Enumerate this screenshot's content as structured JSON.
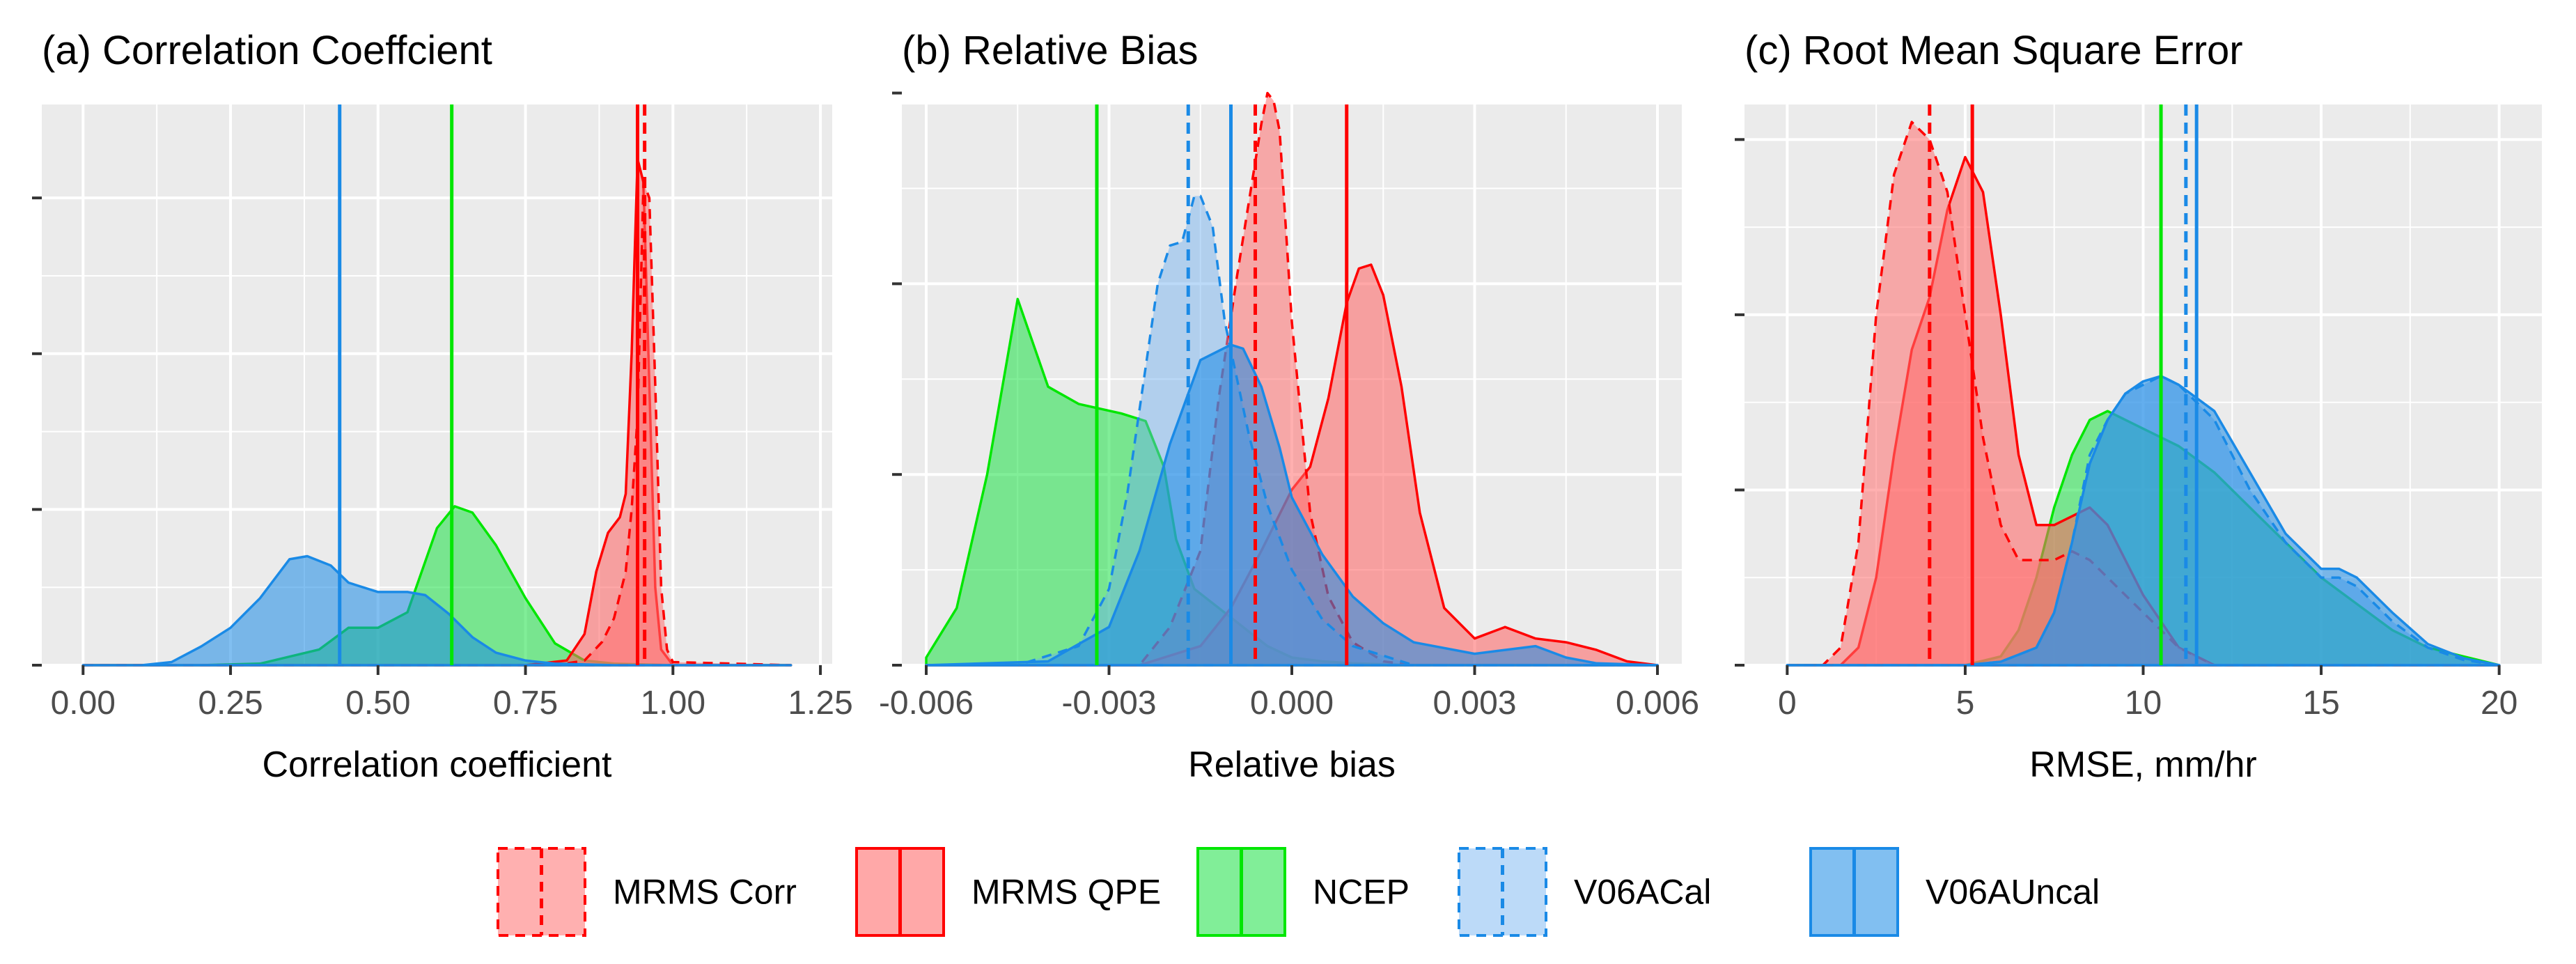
{
  "chart_data": [
    {
      "type": "area",
      "title": "(a) Correlation Coeffcient",
      "xlabel": "Correlation coefficient",
      "ylabel": "",
      "xlim": [
        -0.07,
        1.27
      ],
      "ylim": [
        0,
        36
      ],
      "xticks": [
        0.0,
        0.25,
        0.5,
        0.75,
        1.0,
        1.25
      ],
      "xtick_labels": [
        "0.00",
        "0.25",
        "0.50",
        "0.75",
        "1.00",
        "1.25"
      ],
      "yticks": [
        0,
        10,
        20,
        30
      ],
      "series": [
        {
          "name": "V06AUncal",
          "key": "v06auncal",
          "x": [
            0.0,
            0.1,
            0.15,
            0.2,
            0.25,
            0.3,
            0.35,
            0.38,
            0.42,
            0.45,
            0.5,
            0.55,
            0.58,
            0.62,
            0.66,
            0.7,
            0.75,
            0.8,
            0.9,
            1.0,
            1.2
          ],
          "y": [
            0,
            0,
            0.2,
            1.2,
            2.4,
            4.3,
            6.8,
            7.0,
            6.4,
            5.3,
            4.7,
            4.7,
            4.5,
            3.3,
            1.8,
            0.8,
            0.3,
            0.1,
            0,
            0,
            0
          ],
          "mean": 0.435
        },
        {
          "name": "NCEP",
          "key": "ncep",
          "x": [
            0.0,
            0.2,
            0.3,
            0.4,
            0.45,
            0.5,
            0.55,
            0.6,
            0.63,
            0.66,
            0.7,
            0.75,
            0.8,
            0.85,
            0.9,
            1.0,
            1.2
          ],
          "y": [
            0,
            0,
            0.1,
            1.0,
            2.4,
            2.4,
            3.4,
            8.8,
            10.2,
            9.8,
            7.7,
            4.3,
            1.4,
            0.3,
            0.1,
            0,
            0
          ],
          "mean": 0.625
        },
        {
          "name": "MRMS QPE",
          "key": "qpe",
          "x": [
            0.0,
            0.75,
            0.82,
            0.85,
            0.87,
            0.89,
            0.91,
            0.92,
            0.93,
            0.94,
            0.95,
            0.96,
            0.97,
            0.98,
            1.0,
            1.2
          ],
          "y": [
            0,
            0,
            0.3,
            2.0,
            6.0,
            8.5,
            9.5,
            11.0,
            20.0,
            32.5,
            31.0,
            18.0,
            5.0,
            1.0,
            0,
            0
          ],
          "mean": 0.94
        },
        {
          "name": "MRMS Corr",
          "key": "corr",
          "x": [
            0.0,
            0.8,
            0.85,
            0.88,
            0.9,
            0.92,
            0.93,
            0.94,
            0.95,
            0.96,
            0.97,
            0.98,
            0.99,
            1.0,
            1.2
          ],
          "y": [
            0,
            0,
            0.3,
            1.5,
            3.0,
            6.0,
            10.0,
            16.0,
            31.0,
            30.0,
            18.0,
            5.0,
            1.0,
            0.2,
            0
          ],
          "mean": 0.952
        }
      ]
    },
    {
      "type": "area",
      "title": "(b) Relative Bias",
      "xlabel": "Relative bias",
      "ylabel": "",
      "xlim": [
        -0.0064,
        0.0064
      ],
      "ylim": [
        0,
        1470
      ],
      "xticks": [
        -0.006,
        -0.003,
        0.0,
        0.003,
        0.006
      ],
      "xtick_labels": [
        "-0.006",
        "-0.003",
        "0.000",
        "0.003",
        "0.006"
      ],
      "yticks": [
        0,
        500,
        1000,
        1500
      ],
      "series": [
        {
          "name": "NCEP",
          "key": "ncep",
          "x": [
            -0.006,
            -0.0055,
            -0.005,
            -0.0045,
            -0.004,
            -0.0035,
            -0.0028,
            -0.0024,
            -0.0021,
            -0.0019,
            -0.0016,
            -0.0012,
            -0.0008,
            -0.0004,
            0.0,
            0.0005,
            0.001,
            0.002,
            0.006
          ],
          "y": [
            20,
            150,
            500,
            960,
            730,
            685,
            660,
            640,
            520,
            330,
            200,
            150,
            100,
            50,
            20,
            10,
            5,
            0,
            0
          ],
          "mean": -0.0032
        },
        {
          "name": "MRMS QPE",
          "key": "qpe",
          "x": [
            -0.006,
            -0.0025,
            -0.0015,
            -0.001,
            -0.0005,
            0.0,
            0.0003,
            0.0006,
            0.0009,
            0.0011,
            0.0013,
            0.0015,
            0.0018,
            0.0021,
            0.0025,
            0.003,
            0.0035,
            0.004,
            0.0045,
            0.005,
            0.0055,
            0.006
          ],
          "y": [
            0,
            0,
            50,
            150,
            300,
            460,
            520,
            700,
            950,
            1040,
            1050,
            970,
            730,
            400,
            150,
            70,
            100,
            70,
            60,
            40,
            10,
            0
          ],
          "mean": 0.0009
        },
        {
          "name": "MRMS Corr",
          "key": "corr",
          "x": [
            -0.006,
            -0.0025,
            -0.002,
            -0.0015,
            -0.0012,
            -0.0009,
            -0.0007,
            -0.0005,
            -0.0004,
            -0.0003,
            -0.0002,
            0.0,
            0.0003,
            0.0006,
            0.001,
            0.0015,
            0.002,
            0.006
          ],
          "y": [
            0,
            0,
            100,
            300,
            700,
            1020,
            1220,
            1420,
            1500,
            1480,
            1400,
            900,
            400,
            180,
            60,
            10,
            0,
            0
          ],
          "mean": -0.0006
        },
        {
          "name": "V06ACal",
          "key": "v06acal",
          "x": [
            -0.006,
            -0.0045,
            -0.0035,
            -0.003,
            -0.0027,
            -0.0024,
            -0.0022,
            -0.002,
            -0.0018,
            -0.0016,
            -0.0015,
            -0.0013,
            -0.0011,
            -0.0009,
            -0.0007,
            -0.0004,
            0.0,
            0.0005,
            0.001,
            0.002,
            0.006
          ],
          "y": [
            0,
            0,
            50,
            200,
            450,
            780,
            1000,
            1100,
            1110,
            1230,
            1230,
            1150,
            900,
            750,
            600,
            420,
            250,
            120,
            50,
            0,
            0
          ],
          "mean": -0.0017
        },
        {
          "name": "V06AUncal",
          "key": "v06auncal",
          "x": [
            -0.006,
            -0.004,
            -0.003,
            -0.0025,
            -0.002,
            -0.0015,
            -0.001,
            -0.0008,
            -0.0005,
            -0.0002,
            0.0,
            0.0005,
            0.001,
            0.0015,
            0.002,
            0.003,
            0.0035,
            0.004,
            0.0045,
            0.005,
            0.006
          ],
          "y": [
            0,
            10,
            100,
            300,
            580,
            800,
            840,
            830,
            730,
            570,
            440,
            290,
            180,
            110,
            60,
            30,
            40,
            50,
            20,
            5,
            0
          ],
          "mean": -0.001
        }
      ]
    },
    {
      "type": "area",
      "title": "(c) Root Mean Square Error",
      "xlabel": "RMSE, mm/hr",
      "ylabel": "",
      "xlim": [
        -1.2,
        21.2
      ],
      "ylim": [
        0,
        0.32
      ],
      "xticks": [
        0,
        5,
        10,
        15,
        20
      ],
      "xtick_labels": [
        "0",
        "5",
        "10",
        "15",
        "20"
      ],
      "yticks": [
        0,
        0.1,
        0.2,
        0.3
      ],
      "series": [
        {
          "name": "MRMS Corr",
          "key": "corr",
          "x": [
            0,
            1,
            1.5,
            2,
            2.5,
            3,
            3.5,
            4,
            4.5,
            5,
            5.5,
            6,
            6.5,
            7,
            7.5,
            8,
            8.5,
            9,
            9.5,
            10,
            11,
            12,
            20
          ],
          "y": [
            0,
            0,
            0.01,
            0.07,
            0.2,
            0.28,
            0.31,
            0.3,
            0.27,
            0.2,
            0.13,
            0.08,
            0.06,
            0.06,
            0.06,
            0.065,
            0.06,
            0.05,
            0.04,
            0.03,
            0.01,
            0,
            0
          ],
          "mean": 4.0
        },
        {
          "name": "MRMS QPE",
          "key": "qpe",
          "x": [
            0,
            1.5,
            2,
            2.5,
            3,
            3.5,
            4,
            4.5,
            5,
            5.5,
            6,
            6.5,
            7,
            7.5,
            8,
            8.5,
            9,
            9.5,
            10,
            11,
            12,
            20
          ],
          "y": [
            0,
            0,
            0.01,
            0.05,
            0.12,
            0.18,
            0.21,
            0.26,
            0.29,
            0.27,
            0.2,
            0.12,
            0.08,
            0.08,
            0.085,
            0.09,
            0.08,
            0.06,
            0.04,
            0.01,
            0,
            0
          ],
          "mean": 5.2
        },
        {
          "name": "NCEP",
          "key": "ncep",
          "x": [
            0,
            5,
            6,
            6.5,
            7,
            7.5,
            8,
            8.5,
            9,
            9.5,
            10,
            11,
            12,
            13,
            14,
            15,
            16,
            17,
            18,
            19,
            20
          ],
          "y": [
            0,
            0,
            0.005,
            0.02,
            0.05,
            0.09,
            0.12,
            0.14,
            0.145,
            0.14,
            0.135,
            0.125,
            0.11,
            0.09,
            0.07,
            0.05,
            0.035,
            0.02,
            0.01,
            0.005,
            0.0
          ],
          "mean": 10.5
        },
        {
          "name": "V06ACal",
          "key": "v06acal",
          "x": [
            0,
            5,
            6,
            7,
            7.5,
            8,
            8.5,
            9,
            9.5,
            10,
            10.5,
            11,
            12,
            13,
            14,
            15,
            15.5,
            16,
            17,
            18,
            19,
            20
          ],
          "y": [
            0,
            0,
            0.002,
            0.01,
            0.03,
            0.07,
            0.12,
            0.14,
            0.155,
            0.16,
            0.165,
            0.16,
            0.14,
            0.1,
            0.07,
            0.05,
            0.05,
            0.045,
            0.025,
            0.01,
            0.003,
            0.0
          ],
          "mean": 11.2
        },
        {
          "name": "V06AUncal",
          "key": "v06auncal",
          "x": [
            0,
            5,
            6,
            7,
            7.5,
            8,
            8.5,
            9,
            9.5,
            10,
            10.5,
            11,
            12,
            13,
            14,
            15,
            15.5,
            16,
            17,
            18,
            19,
            20
          ],
          "y": [
            0,
            0,
            0.002,
            0.01,
            0.03,
            0.07,
            0.115,
            0.14,
            0.155,
            0.162,
            0.165,
            0.16,
            0.145,
            0.11,
            0.075,
            0.055,
            0.055,
            0.05,
            0.03,
            0.012,
            0.004,
            0.0
          ],
          "mean": 11.5
        }
      ]
    }
  ],
  "legend": {
    "position": "bottom",
    "items": [
      {
        "key": "corr",
        "label": "MRMS Corr",
        "dashed": true
      },
      {
        "key": "qpe",
        "label": "MRMS QPE",
        "dashed": false
      },
      {
        "key": "ncep",
        "label": "NCEP",
        "dashed": false
      },
      {
        "key": "v06acal",
        "label": "V06ACal",
        "dashed": true
      },
      {
        "key": "v06auncal",
        "label": "V06AUncal",
        "dashed": false
      }
    ]
  },
  "colors": {
    "corr": "#ff0000",
    "qpe": "#ff0000",
    "ncep": "#00e600",
    "v06acal": "#1a8ae6",
    "v06auncal": "#1a8ae6",
    "corr_fill": "#ff7070",
    "qpe_fill": "#ff6060",
    "ncep_fill": "#19e043",
    "v06acal_fill": "#6aacf0",
    "v06auncal_fill": "#1a8ae6",
    "panel_bg": "#ebebeb",
    "grid": "#ffffff"
  }
}
